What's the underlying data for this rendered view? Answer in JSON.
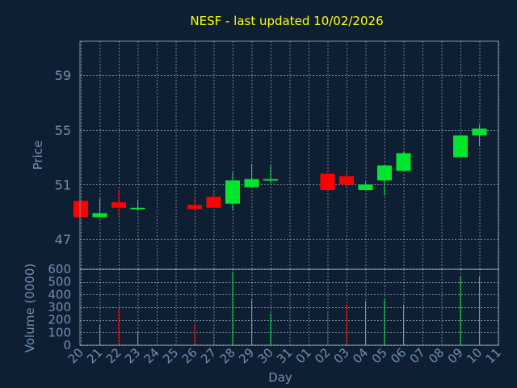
{
  "colors": {
    "background": "#0f1f33",
    "title": "#ffff00",
    "axis_text": "#6f8fb0",
    "frame": "#7f92a8",
    "grid": "#9aa9b8",
    "up": "#00e62e",
    "down": "#ff0000"
  },
  "chart_data": {
    "type": "candlestick",
    "title": "NESF - last updated 10/02/2026",
    "xlabel": "Day",
    "ylabel_price": "Price",
    "ylabel_volume": "Volume (0000)",
    "price_ticks": [
      47,
      51,
      55,
      59
    ],
    "price_range": [
      44.8,
      61.5
    ],
    "volume_ticks": [
      0,
      100,
      200,
      300,
      400,
      500,
      600
    ],
    "volume_range": [
      0,
      600
    ],
    "grid": true,
    "days": [
      "20",
      "21",
      "22",
      "23",
      "24",
      "25",
      "26",
      "27",
      "28",
      "29",
      "30",
      "31",
      "01",
      "02",
      "03",
      "04",
      "05",
      "06",
      "07",
      "08",
      "09",
      "10",
      "11"
    ],
    "candles": [
      {
        "day": "20",
        "open": 49.8,
        "high": 49.8,
        "low": 48.6,
        "close": 48.6,
        "volume": 0
      },
      {
        "day": "21",
        "open": 48.6,
        "high": 50.0,
        "low": 48.6,
        "close": 48.9,
        "volume": 160
      },
      {
        "day": "22",
        "open": 49.7,
        "high": 50.6,
        "low": 48.7,
        "close": 49.3,
        "volume": 290
      },
      {
        "day": "23",
        "open": 49.2,
        "high": 49.9,
        "low": 49.1,
        "close": 49.3,
        "volume": 110
      },
      {
        "day": "24",
        "open": null,
        "high": null,
        "low": null,
        "close": null,
        "volume": 0
      },
      {
        "day": "25",
        "open": null,
        "high": null,
        "low": null,
        "close": null,
        "volume": 0
      },
      {
        "day": "26",
        "open": 49.5,
        "high": 50.0,
        "low": 49.1,
        "close": 49.2,
        "volume": 165
      },
      {
        "day": "27",
        "open": 50.1,
        "high": 50.5,
        "low": 49.3,
        "close": 49.3,
        "volume": 130
      },
      {
        "day": "28",
        "open": 49.6,
        "high": 51.9,
        "low": 49.1,
        "close": 51.3,
        "volume": 580
      },
      {
        "day": "29",
        "open": 50.8,
        "high": 52.5,
        "low": 50.8,
        "close": 51.4,
        "volume": 360
      },
      {
        "day": "30",
        "open": 51.3,
        "high": 52.4,
        "low": 51.1,
        "close": 51.4,
        "volume": 250
      },
      {
        "day": "31",
        "open": null,
        "high": null,
        "low": null,
        "close": null,
        "volume": 0
      },
      {
        "day": "01",
        "open": null,
        "high": null,
        "low": null,
        "close": null,
        "volume": 0
      },
      {
        "day": "02",
        "open": 51.8,
        "high": 51.8,
        "low": 50.5,
        "close": 50.6,
        "volume": 265
      },
      {
        "day": "03",
        "open": 51.6,
        "high": 51.9,
        "low": 50.8,
        "close": 51.0,
        "volume": 320
      },
      {
        "day": "04",
        "open": 50.6,
        "high": 51.2,
        "low": 50.6,
        "close": 51.0,
        "volume": 350
      },
      {
        "day": "05",
        "open": 51.3,
        "high": 52.4,
        "low": 50.2,
        "close": 52.4,
        "volume": 360
      },
      {
        "day": "06",
        "open": 52.0,
        "high": 53.4,
        "low": 52.0,
        "close": 53.3,
        "volume": 320
      },
      {
        "day": "07",
        "open": null,
        "high": null,
        "low": null,
        "close": null,
        "volume": 0
      },
      {
        "day": "08",
        "open": null,
        "high": null,
        "low": null,
        "close": null,
        "volume": 0
      },
      {
        "day": "09",
        "open": 53.0,
        "high": 54.6,
        "low": 53.0,
        "close": 54.6,
        "volume": 545
      },
      {
        "day": "10",
        "open": 54.6,
        "high": 55.4,
        "low": 53.8,
        "close": 55.1,
        "volume": 545
      },
      {
        "day": "11",
        "open": null,
        "high": null,
        "low": null,
        "close": null,
        "volume": 0
      }
    ]
  }
}
